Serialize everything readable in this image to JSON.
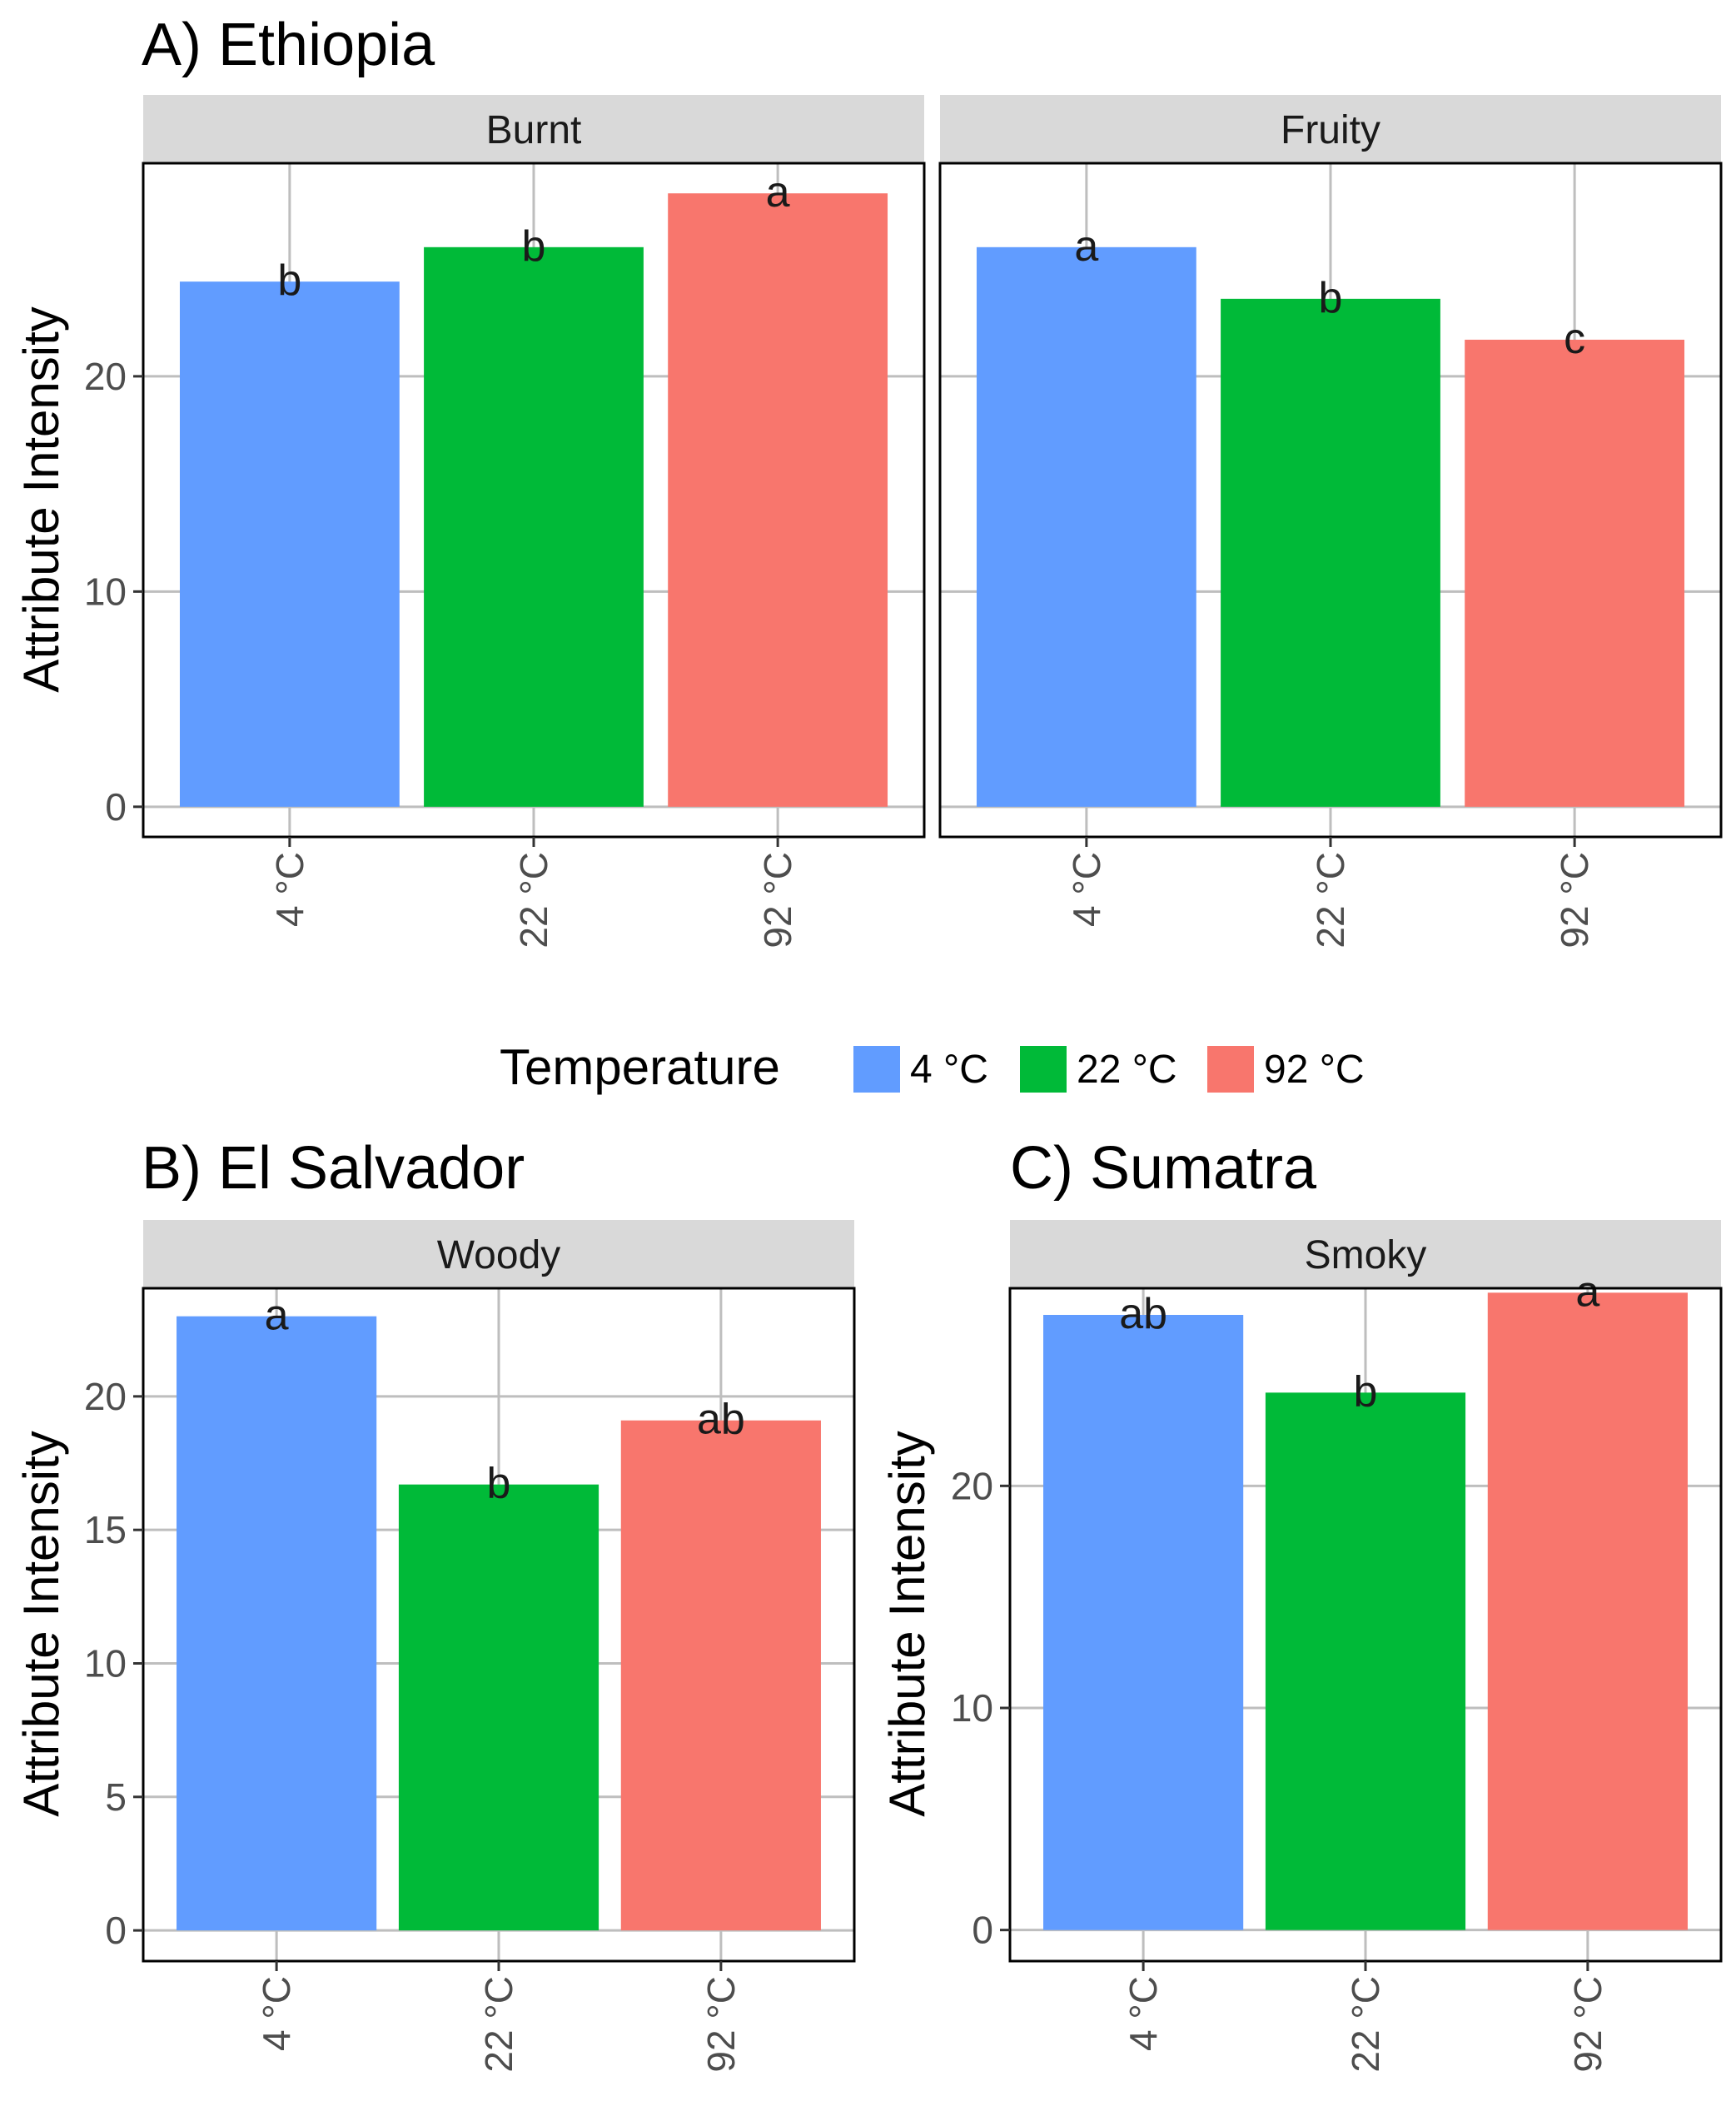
{
  "colors": {
    "4 °C": "#619CFF",
    "22 °C": "#00BA38",
    "92 °C": "#F8766D",
    "strip_bg": "#D9D9D9",
    "grid": "#BEBEBE"
  },
  "legend": {
    "title": "Temperature",
    "items": [
      "4 °C",
      "22 °C",
      "92 °C"
    ]
  },
  "chart_data": [
    {
      "type": "bar",
      "title": "A) Ethiopia",
      "ylabel": "Attribute Intensity",
      "xlabel": "",
      "ylim": [
        -1.4,
        29.9
      ],
      "yticks": [
        0,
        10,
        20
      ],
      "grid": true,
      "facets": [
        {
          "strip": "Burnt",
          "categories": [
            "4 °C",
            "22 °C",
            "92 °C"
          ],
          "values": [
            24.4,
            26.0,
            28.5
          ],
          "letters": [
            "b",
            "b",
            "a"
          ]
        },
        {
          "strip": "Fruity",
          "categories": [
            "4 °C",
            "22 °C",
            "92 °C"
          ],
          "values": [
            26.0,
            23.6,
            21.7
          ],
          "letters": [
            "a",
            "b",
            "c"
          ]
        }
      ]
    },
    {
      "type": "bar",
      "title": "B) El Salvador",
      "ylabel": "Attribute Intensity",
      "xlabel": "",
      "ylim": [
        -1.15,
        24.05
      ],
      "yticks": [
        0,
        5,
        10,
        15,
        20
      ],
      "grid": true,
      "facets": [
        {
          "strip": "Woody",
          "categories": [
            "4 °C",
            "22 °C",
            "92 °C"
          ],
          "values": [
            23.0,
            16.7,
            19.1
          ],
          "letters": [
            "a",
            "b",
            "ab"
          ]
        }
      ]
    },
    {
      "type": "bar",
      "title": "C) Sumatra",
      "ylabel": "Attribute Intensity",
      "xlabel": "",
      "ylim": [
        -1.4,
        28.9
      ],
      "yticks": [
        0,
        10,
        20
      ],
      "grid": true,
      "facets": [
        {
          "strip": "Smoky",
          "categories": [
            "4 °C",
            "22 °C",
            "92 °C"
          ],
          "values": [
            27.7,
            24.2,
            28.7
          ],
          "letters": [
            "ab",
            "b",
            "a"
          ]
        }
      ]
    }
  ]
}
